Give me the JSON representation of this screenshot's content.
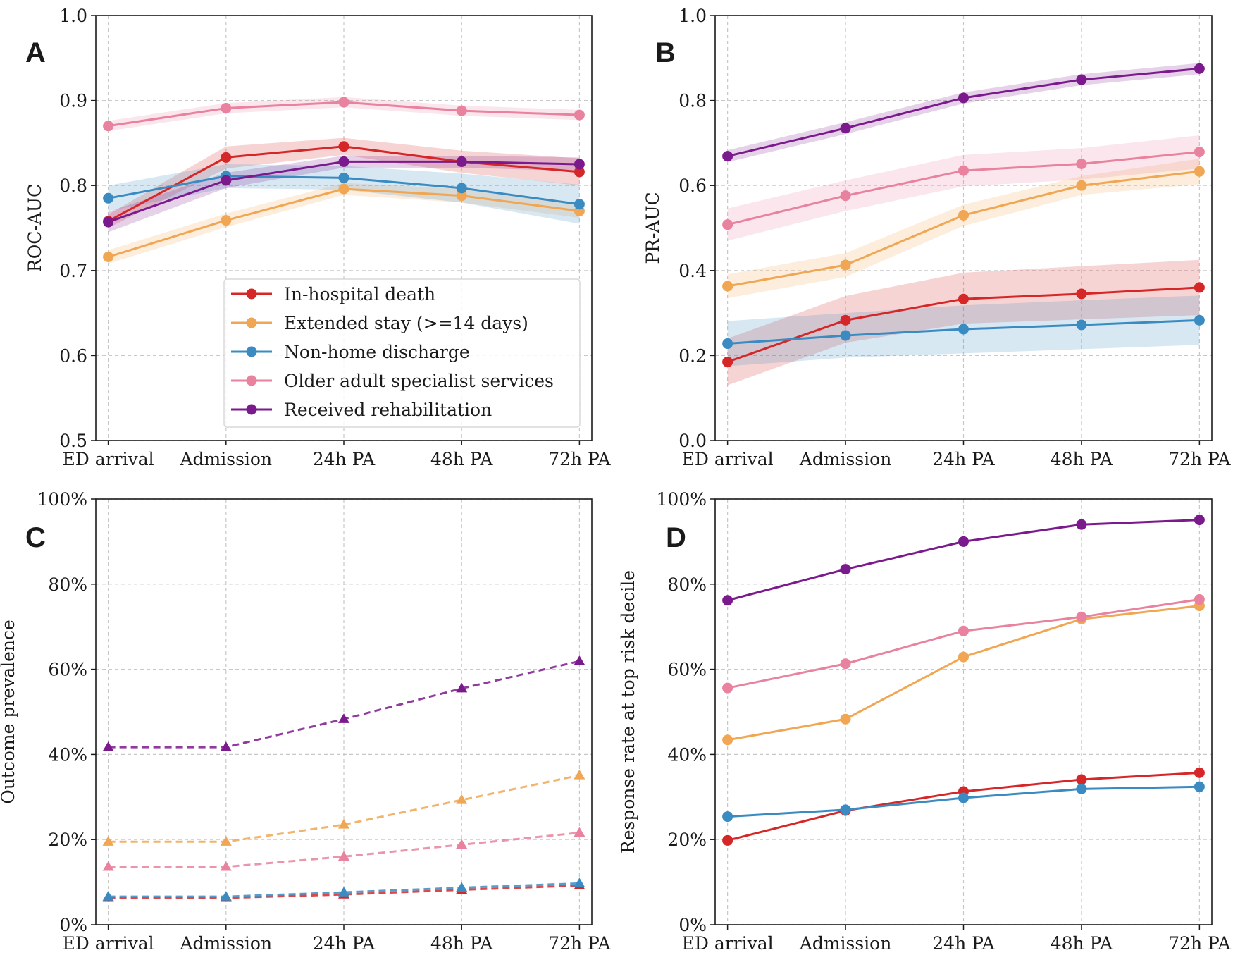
{
  "figure": {
    "x_categories": [
      "ED arrival",
      "Admission",
      "24h PA",
      "48h PA",
      "72h PA"
    ],
    "colors": {
      "in_hospital_death": "#d62728",
      "extended_stay": "#f0a652",
      "non_home_discharge": "#3a8bc2",
      "older_adult_specialist": "#e8829e",
      "received_rehabilitation": "#7b1a8c"
    }
  },
  "chart_data": [
    {
      "panel": "A",
      "type": "line",
      "ylabel": "ROC-AUC",
      "xlabel": "",
      "ylim": [
        0.5,
        1.0
      ],
      "yticks": [
        0.5,
        0.6,
        0.7,
        0.8,
        0.9,
        1.0
      ],
      "ytick_labels": [
        "0.5",
        "0.6",
        "0.7",
        "0.8",
        "0.9",
        "1.0"
      ],
      "grid": true,
      "legend": "lower-center",
      "categories": [
        "ED arrival",
        "Admission",
        "24h PA",
        "48h PA",
        "72h PA"
      ],
      "series": [
        {
          "key": "in_hospital_death",
          "name": "In-hospital death",
          "values": [
            0.758,
            0.833,
            0.846,
            0.828,
            0.816
          ],
          "lower": [
            0.75,
            0.82,
            0.836,
            0.815,
            0.8
          ],
          "upper": [
            0.766,
            0.846,
            0.856,
            0.841,
            0.832
          ]
        },
        {
          "key": "extended_stay",
          "name": "Extended stay (>=14 days)",
          "values": [
            0.716,
            0.759,
            0.796,
            0.788,
            0.77
          ],
          "lower": [
            0.708,
            0.751,
            0.789,
            0.78,
            0.762
          ],
          "upper": [
            0.724,
            0.767,
            0.803,
            0.796,
            0.778
          ]
        },
        {
          "key": "non_home_discharge",
          "name": "Non-home discharge",
          "values": [
            0.785,
            0.811,
            0.809,
            0.797,
            0.778
          ],
          "lower": [
            0.77,
            0.797,
            0.795,
            0.78,
            0.755
          ],
          "upper": [
            0.8,
            0.825,
            0.823,
            0.814,
            0.801
          ]
        },
        {
          "key": "older_adult_specialist",
          "name": "Older adult specialist services",
          "values": [
            0.87,
            0.891,
            0.898,
            0.888,
            0.883
          ],
          "lower": [
            0.864,
            0.885,
            0.892,
            0.882,
            0.877
          ],
          "upper": [
            0.876,
            0.897,
            0.904,
            0.894,
            0.889
          ]
        },
        {
          "key": "received_rehabilitation",
          "name": "Received rehabilitation",
          "values": [
            0.757,
            0.806,
            0.828,
            0.828,
            0.825
          ],
          "lower": [
            0.745,
            0.797,
            0.821,
            0.821,
            0.817
          ],
          "upper": [
            0.769,
            0.815,
            0.835,
            0.835,
            0.833
          ]
        }
      ]
    },
    {
      "panel": "B",
      "type": "line",
      "ylabel": "PR-AUC",
      "xlabel": "",
      "ylim": [
        0.0,
        1.0
      ],
      "yticks": [
        0.0,
        0.2,
        0.4,
        0.6,
        0.8,
        1.0
      ],
      "ytick_labels": [
        "0.0",
        "0.2",
        "0.4",
        "0.6",
        "0.8",
        "1.0"
      ],
      "grid": true,
      "categories": [
        "ED arrival",
        "Admission",
        "24h PA",
        "48h PA",
        "72h PA"
      ],
      "series": [
        {
          "key": "in_hospital_death",
          "name": "In-hospital death",
          "values": [
            0.185,
            0.283,
            0.333,
            0.345,
            0.36
          ],
          "lower": [
            0.13,
            0.23,
            0.275,
            0.285,
            0.295
          ],
          "upper": [
            0.24,
            0.34,
            0.395,
            0.41,
            0.425
          ]
        },
        {
          "key": "extended_stay",
          "name": "Extended stay (>=14 days)",
          "values": [
            0.363,
            0.413,
            0.53,
            0.6,
            0.633
          ],
          "lower": [
            0.335,
            0.385,
            0.505,
            0.578,
            0.603
          ],
          "upper": [
            0.391,
            0.441,
            0.555,
            0.622,
            0.663
          ]
        },
        {
          "key": "non_home_discharge",
          "name": "Non-home discharge",
          "values": [
            0.228,
            0.247,
            0.262,
            0.272,
            0.283
          ],
          "lower": [
            0.175,
            0.195,
            0.205,
            0.215,
            0.225
          ],
          "upper": [
            0.281,
            0.3,
            0.318,
            0.33,
            0.341
          ]
        },
        {
          "key": "older_adult_specialist",
          "name": "Older adult specialist services",
          "values": [
            0.508,
            0.576,
            0.635,
            0.651,
            0.679
          ],
          "lower": [
            0.47,
            0.54,
            0.598,
            0.614,
            0.64
          ],
          "upper": [
            0.546,
            0.612,
            0.672,
            0.688,
            0.718
          ]
        },
        {
          "key": "received_rehabilitation",
          "name": "Received rehabilitation",
          "values": [
            0.669,
            0.735,
            0.806,
            0.849,
            0.875
          ],
          "lower": [
            0.655,
            0.721,
            0.793,
            0.836,
            0.862
          ],
          "upper": [
            0.683,
            0.749,
            0.819,
            0.862,
            0.888
          ]
        }
      ]
    },
    {
      "panel": "C",
      "type": "line",
      "ylabel": "Outcome prevalence",
      "xlabel": "",
      "ylim": [
        0,
        100
      ],
      "yticks": [
        0,
        20,
        40,
        60,
        80,
        100
      ],
      "ytick_labels": [
        "0%",
        "20%",
        "40%",
        "60%",
        "80%",
        "100%"
      ],
      "grid": true,
      "line_style": "dashed",
      "marker": "triangle",
      "categories": [
        "ED arrival",
        "Admission",
        "24h PA",
        "48h PA",
        "72h PA"
      ],
      "series": [
        {
          "key": "in_hospital_death",
          "name": "In-hospital death",
          "values": [
            6.3,
            6.3,
            7.1,
            8.2,
            9.2
          ]
        },
        {
          "key": "extended_stay",
          "name": "Extended stay (>=14 days)",
          "values": [
            19.5,
            19.5,
            23.5,
            29.3,
            35.1
          ]
        },
        {
          "key": "non_home_discharge",
          "name": "Non-home discharge",
          "values": [
            6.6,
            6.6,
            7.6,
            8.7,
            9.7
          ]
        },
        {
          "key": "older_adult_specialist",
          "name": "Older adult specialist services",
          "values": [
            13.6,
            13.6,
            16.0,
            18.8,
            21.6
          ]
        },
        {
          "key": "received_rehabilitation",
          "name": "Received rehabilitation",
          "values": [
            41.7,
            41.7,
            48.3,
            55.5,
            61.9
          ]
        }
      ]
    },
    {
      "panel": "D",
      "type": "line",
      "ylabel": "Response rate at top risk decile",
      "xlabel": "",
      "ylim": [
        0,
        100
      ],
      "yticks": [
        0,
        20,
        40,
        60,
        80,
        100
      ],
      "ytick_labels": [
        "0%",
        "20%",
        "40%",
        "60%",
        "80%",
        "100%"
      ],
      "grid": true,
      "categories": [
        "ED arrival",
        "Admission",
        "24h PA",
        "48h PA",
        "72h PA"
      ],
      "series": [
        {
          "key": "in_hospital_death",
          "name": "In-hospital death",
          "values": [
            19.8,
            26.8,
            31.3,
            34.1,
            35.7
          ]
        },
        {
          "key": "extended_stay",
          "name": "Extended stay (>=14 days)",
          "values": [
            43.4,
            48.3,
            62.9,
            71.8,
            74.9
          ]
        },
        {
          "key": "non_home_discharge",
          "name": "Non-home discharge",
          "values": [
            25.4,
            27.0,
            29.8,
            31.9,
            32.4
          ]
        },
        {
          "key": "older_adult_specialist",
          "name": "Older adult specialist services",
          "values": [
            55.6,
            61.3,
            69.0,
            72.3,
            76.4
          ]
        },
        {
          "key": "received_rehabilitation",
          "name": "Received rehabilitation",
          "values": [
            76.2,
            83.5,
            90.0,
            94.0,
            95.1
          ]
        }
      ]
    }
  ]
}
